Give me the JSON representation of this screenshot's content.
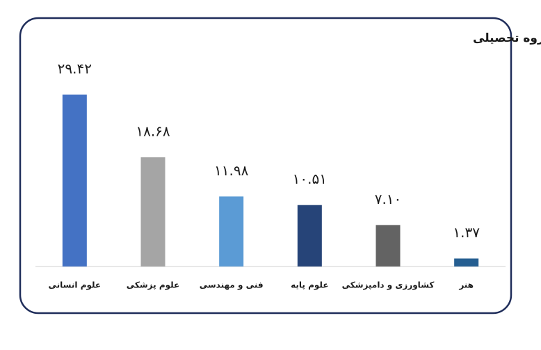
{
  "chart_data": {
    "type": "bar",
    "title": "درصد دانش آموختگان دکتری تخصصی به تفکیک گروه تحصیلی",
    "categories": [
      "علوم انسانی",
      "علوم پزشکی",
      "فنی و مهندسی",
      "علوم پایه",
      "کشاورزی و دامپزشکی",
      "هنر"
    ],
    "values": [
      29.42,
      18.68,
      11.98,
      10.51,
      7.1,
      1.37
    ],
    "value_labels": [
      "۲۹.۴۲",
      "۱۸.۶۸",
      "۱۱.۹۸",
      "۱۰.۵۱",
      "۷.۱۰",
      "۱.۳۷"
    ],
    "colors": [
      "#4472c4",
      "#a5a5a5",
      "#5b9bd5",
      "#264478",
      "#636363",
      "#255e91"
    ]
  }
}
